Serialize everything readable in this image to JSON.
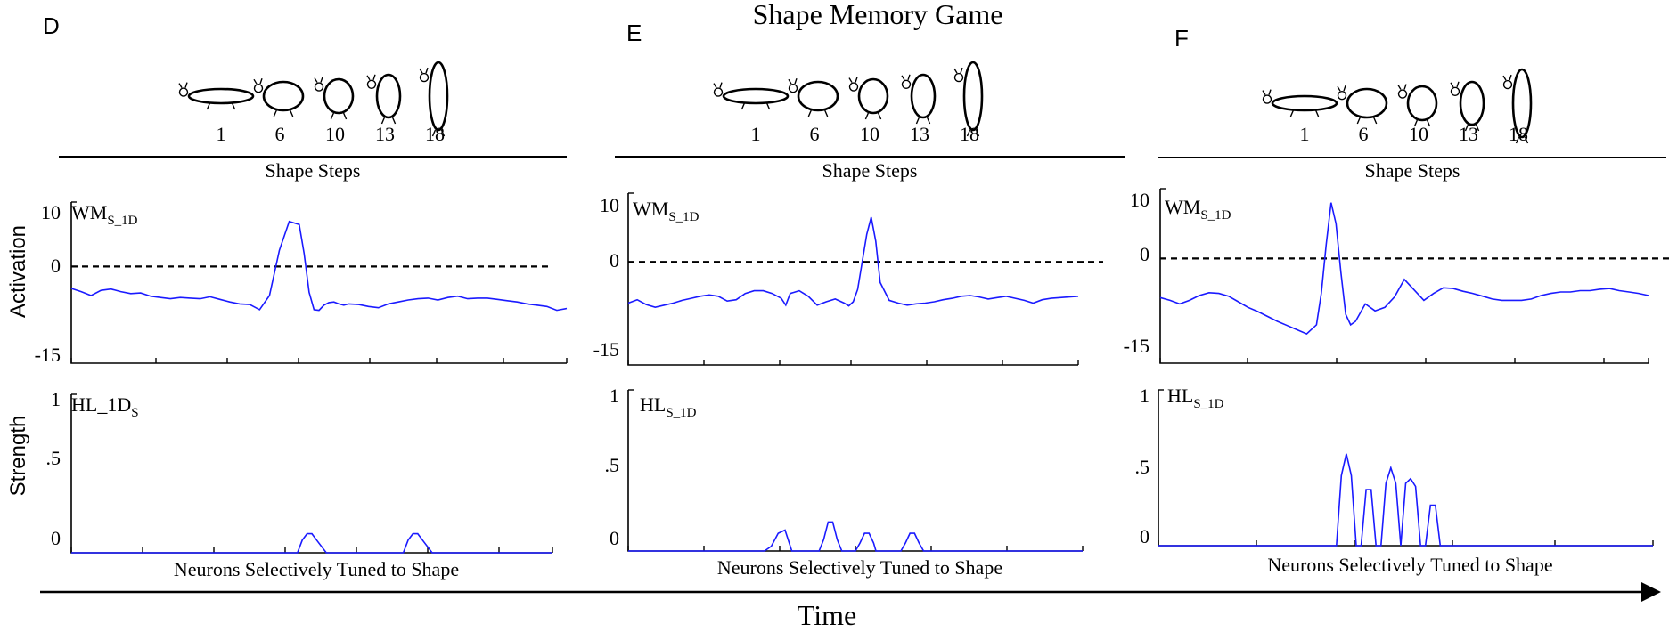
{
  "title": "Shape Memory Game",
  "time_label": "Time",
  "activation_label": "Activation",
  "strength_label": "Strength",
  "shape_steps": [
    "1",
    "6",
    "10",
    "13",
    "18"
  ],
  "shape_steps_label": "Shape Steps",
  "neurons_label": "Neurons Selectively Tuned to Shape",
  "colors": {
    "trace": "#1a1aff",
    "axis": "#000000",
    "zero_line": "#000000"
  },
  "chart_data": [
    {
      "panel": "D",
      "type": "line",
      "title": "WM",
      "title_sub": "S_1D",
      "ylabel": "Activation",
      "ylim": [
        -15,
        10
      ],
      "yticks": [
        "10",
        "0",
        "-15"
      ],
      "reference_line": 0,
      "x": [
        0,
        2,
        4,
        6,
        8,
        10,
        12,
        14,
        16,
        18,
        20,
        22,
        24,
        26,
        28,
        30,
        32,
        34,
        36,
        38,
        40,
        42,
        44,
        46,
        47,
        48,
        49,
        50,
        51,
        52,
        53,
        54,
        55,
        56,
        58,
        60,
        62,
        64,
        66,
        68,
        70,
        72,
        74,
        76,
        78,
        80,
        82,
        84,
        86,
        88,
        90,
        92,
        94,
        96,
        98,
        100
      ],
      "values": [
        -3.4,
        -3.9,
        -4.5,
        -3.7,
        -3.5,
        -3.9,
        -4.2,
        -4.1,
        -4.6,
        -4.8,
        -5.0,
        -4.8,
        -4.9,
        -5.0,
        -4.7,
        -5.1,
        -5.5,
        -5.8,
        -5.9,
        -6.7,
        -4.5,
        2.5,
        7.0,
        6.5,
        2.0,
        -4.0,
        -6.7,
        -6.8,
        -6.0,
        -5.6,
        -5.5,
        -5.8,
        -6.0,
        -5.8,
        -5.9,
        -6.2,
        -6.4,
        -5.8,
        -5.5,
        -5.2,
        -5.0,
        -4.9,
        -5.2,
        -4.8,
        -4.6,
        -5.0,
        -4.9,
        -4.9,
        -5.1,
        -5.3,
        -5.5,
        -5.8,
        -6.0,
        -6.2,
        -6.8,
        -6.5
      ]
    },
    {
      "panel": "D",
      "type": "line",
      "title": "HL_1D",
      "title_sub": "S",
      "xlabel": "Neurons Selectively Tuned to Shape",
      "ylabel": "Strength",
      "ylim": [
        0,
        1
      ],
      "yticks": [
        "1",
        ".5",
        "0"
      ],
      "x": [
        0,
        45,
        47,
        48,
        49,
        50,
        51,
        53,
        67,
        69,
        70,
        71,
        72,
        73,
        75,
        100
      ],
      "values": [
        0,
        0,
        0,
        0.08,
        0.12,
        0.12,
        0.08,
        0,
        0,
        0,
        0.08,
        0.12,
        0.12,
        0.08,
        0,
        0
      ]
    },
    {
      "panel": "E",
      "type": "line",
      "title": "WM",
      "title_sub": "S_1D",
      "ylabel": "Activation",
      "ylim": [
        -15,
        10
      ],
      "yticks": [
        "10",
        "0",
        "-15"
      ],
      "reference_line": 0,
      "x": [
        0,
        2,
        4,
        6,
        8,
        10,
        12,
        14,
        16,
        18,
        20,
        22,
        24,
        26,
        28,
        30,
        32,
        34,
        35,
        36,
        38,
        40,
        42,
        44,
        46,
        48,
        49,
        50,
        51,
        52,
        53,
        54,
        55,
        56,
        58,
        60,
        62,
        64,
        66,
        68,
        70,
        72,
        74,
        76,
        78,
        80,
        82,
        84,
        86,
        88,
        90,
        92,
        94,
        96,
        98,
        100
      ],
      "values": [
        -6.0,
        -5.5,
        -6.2,
        -6.6,
        -6.3,
        -6.0,
        -5.6,
        -5.3,
        -5.0,
        -4.8,
        -5.0,
        -5.7,
        -5.5,
        -4.6,
        -4.2,
        -4.2,
        -4.6,
        -5.3,
        -6.3,
        -4.6,
        -4.2,
        -5.0,
        -6.3,
        -5.8,
        -5.4,
        -6.0,
        -6.4,
        -5.8,
        -4.0,
        0.0,
        4.0,
        6.5,
        3.0,
        -3.0,
        -5.6,
        -6.0,
        -6.3,
        -6.1,
        -6.0,
        -5.8,
        -5.5,
        -5.3,
        -5.0,
        -4.9,
        -5.1,
        -5.4,
        -5.2,
        -5.0,
        -5.3,
        -5.6,
        -6.0,
        -5.5,
        -5.3,
        -5.2,
        -5.1,
        -5.0
      ]
    },
    {
      "panel": "E",
      "type": "line",
      "title": "HL",
      "title_sub": "S_1D",
      "xlabel": "Neurons Selectively Tuned to Shape",
      "ylabel": "Strength",
      "ylim": [
        0,
        1
      ],
      "yticks": [
        "1",
        ".5",
        "0"
      ],
      "x": [
        0,
        30,
        31.5,
        33,
        34.5,
        36,
        42,
        43,
        44,
        45,
        46,
        47,
        50,
        51,
        52,
        53,
        54,
        54.5,
        60,
        61,
        62,
        63,
        64,
        65,
        100
      ],
      "values": [
        0,
        0,
        0.03,
        0.11,
        0.13,
        0,
        0,
        0.07,
        0.18,
        0.18,
        0.07,
        0,
        0,
        0.05,
        0.11,
        0.11,
        0.05,
        0,
        0,
        0.05,
        0.11,
        0.11,
        0.05,
        0,
        0
      ]
    },
    {
      "panel": "F",
      "type": "line",
      "title": "WM",
      "title_sub": "S_1D",
      "ylabel": "Activation",
      "ylim": [
        -15,
        10
      ],
      "yticks": [
        "10",
        "0",
        "-15"
      ],
      "reference_line": 0,
      "x": [
        0,
        2,
        4,
        6,
        8,
        10,
        12,
        14,
        16,
        18,
        20,
        22,
        24,
        26,
        28,
        30,
        32,
        33,
        34,
        35,
        36,
        37,
        38,
        39,
        40,
        42,
        44,
        46,
        48,
        50,
        52,
        54,
        56,
        58,
        60,
        62,
        64,
        66,
        68,
        70,
        72,
        74,
        76,
        78,
        80,
        82,
        84,
        86,
        88,
        90,
        92,
        94,
        96,
        98,
        100
      ],
      "values": [
        -5.6,
        -6.0,
        -6.5,
        -6.0,
        -5.3,
        -4.9,
        -5.0,
        -5.4,
        -6.2,
        -7.0,
        -7.6,
        -8.3,
        -9.0,
        -9.6,
        -10.2,
        -10.8,
        -9.5,
        -5.0,
        2.0,
        8.0,
        5.0,
        -2.0,
        -8.0,
        -9.5,
        -9.0,
        -6.5,
        -7.5,
        -7.0,
        -5.5,
        -3.0,
        -4.5,
        -6.0,
        -5.0,
        -4.2,
        -4.3,
        -4.7,
        -5.0,
        -5.4,
        -5.8,
        -6.0,
        -6.0,
        -6.0,
        -5.8,
        -5.3,
        -5.0,
        -4.8,
        -4.8,
        -4.6,
        -4.6,
        -4.4,
        -4.3,
        -4.6,
        -4.8,
        -5.0,
        -5.3
      ]
    },
    {
      "panel": "F",
      "type": "line",
      "title": "HL",
      "title_sub": "S_1D",
      "xlabel": "Neurons Selectively Tuned to Shape",
      "ylabel": "Strength",
      "ylim": [
        0,
        1
      ],
      "yticks": [
        "1",
        ".5",
        "0"
      ],
      "x": [
        0,
        35,
        36,
        37,
        38,
        39,
        40,
        41,
        42,
        43,
        44,
        45,
        46,
        47,
        48,
        49,
        50,
        51,
        52,
        53,
        54,
        55,
        56,
        57,
        58,
        59,
        60,
        61,
        62,
        63,
        64,
        65,
        66,
        67,
        68,
        100
      ],
      "values": [
        0,
        0,
        0,
        0.45,
        0.59,
        0.45,
        0,
        0,
        0.36,
        0.36,
        0,
        0,
        0.4,
        0.5,
        0.4,
        0,
        0.4,
        0.43,
        0.38,
        0,
        0,
        0.26,
        0.26,
        0,
        0,
        0,
        0,
        0,
        0,
        0,
        0,
        0,
        0,
        0,
        0,
        0
      ]
    }
  ]
}
